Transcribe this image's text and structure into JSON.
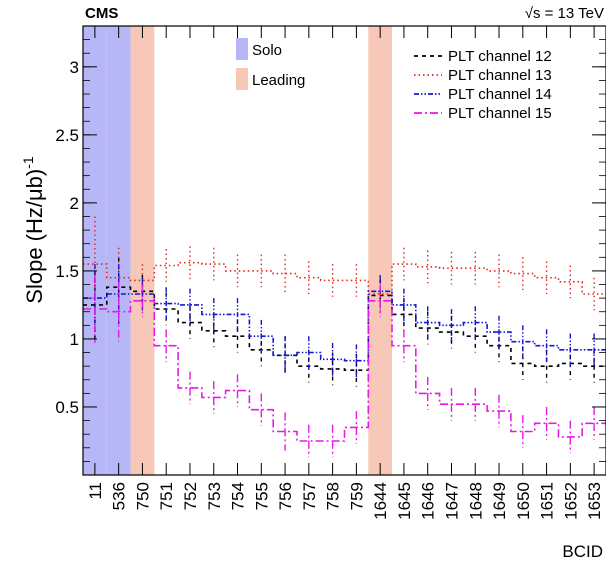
{
  "header": {
    "experiment": "CMS",
    "energy": "√s = 13 TeV"
  },
  "chart_data": {
    "type": "line",
    "ylabel": "Slope (Hz/μb)",
    "ylabel_exponent": "-1",
    "xlabel": "BCID",
    "ylim": [
      0,
      3.3
    ],
    "y_ticks": [
      0.5,
      1,
      1.5,
      2,
      2.5,
      3
    ],
    "y_tick_labels": [
      "0.5",
      "1",
      "1.5",
      "2",
      "2.5",
      "3"
    ],
    "categories": [
      "11",
      "536",
      "750",
      "751",
      "752",
      "753",
      "754",
      "755",
      "756",
      "757",
      "758",
      "759",
      "1644",
      "1645",
      "1646",
      "1647",
      "1648",
      "1649",
      "1650",
      "1651",
      "1652",
      "1653"
    ],
    "grid": false,
    "legend_position": "top-right",
    "shaded_bands": [
      {
        "name": "Solo",
        "color": "#b7b7f8",
        "categories": [
          "11",
          "536"
        ]
      },
      {
        "name": "Leading",
        "color": "#f7c7b8",
        "categories": [
          "750",
          "1644"
        ]
      }
    ],
    "series": [
      {
        "name": "PLT channel 12",
        "color": "#000000",
        "dash": "4,4",
        "values": [
          1.25,
          1.38,
          1.35,
          1.22,
          1.12,
          1.06,
          1.02,
          0.92,
          0.88,
          0.8,
          0.78,
          0.77,
          1.32,
          1.18,
          1.08,
          1.05,
          1.02,
          0.95,
          0.82,
          0.8,
          0.82,
          0.8
        ],
        "errors": [
          0.25,
          0.22,
          0.12,
          0.12,
          0.12,
          0.12,
          0.12,
          0.12,
          0.14,
          0.12,
          0.12,
          0.12,
          0.12,
          0.12,
          0.12,
          0.12,
          0.12,
          0.12,
          0.12,
          0.12,
          0.12,
          0.12
        ]
      },
      {
        "name": "PLT channel 13",
        "color": "#e0281c",
        "dash": "1.5,3",
        "values": [
          1.55,
          1.45,
          1.43,
          1.54,
          1.56,
          1.55,
          1.5,
          1.5,
          1.48,
          1.45,
          1.43,
          1.43,
          1.33,
          1.55,
          1.53,
          1.52,
          1.52,
          1.5,
          1.48,
          1.45,
          1.42,
          1.33
        ],
        "errors": [
          0.35,
          0.22,
          0.12,
          0.12,
          0.12,
          0.12,
          0.12,
          0.12,
          0.14,
          0.12,
          0.12,
          0.12,
          0.12,
          0.12,
          0.12,
          0.12,
          0.12,
          0.12,
          0.12,
          0.12,
          0.12,
          0.12
        ]
      },
      {
        "name": "PLT channel 14",
        "color": "#1515d6",
        "dash": "5,2,1.5,2,1.5,2",
        "values": [
          1.3,
          1.33,
          1.33,
          1.26,
          1.25,
          1.18,
          1.18,
          1.02,
          0.88,
          0.9,
          0.85,
          0.84,
          1.35,
          1.25,
          1.12,
          1.1,
          1.12,
          1.05,
          0.98,
          0.95,
          0.92,
          0.92
        ],
        "errors": [
          0.25,
          0.22,
          0.12,
          0.12,
          0.12,
          0.12,
          0.12,
          0.12,
          0.14,
          0.12,
          0.12,
          0.12,
          0.12,
          0.12,
          0.12,
          0.12,
          0.12,
          0.12,
          0.12,
          0.12,
          0.12,
          0.12
        ]
      },
      {
        "name": "PLT channel 15",
        "color": "#e818e8",
        "dash": "8,3,2,3",
        "values": [
          1.22,
          1.2,
          1.28,
          0.95,
          0.64,
          0.57,
          0.62,
          0.48,
          0.32,
          0.25,
          0.25,
          0.35,
          1.28,
          0.95,
          0.6,
          0.52,
          0.52,
          0.47,
          0.32,
          0.38,
          0.28,
          0.38
        ],
        "errors": [
          0.25,
          0.22,
          0.12,
          0.12,
          0.12,
          0.12,
          0.12,
          0.12,
          0.14,
          0.12,
          0.12,
          0.12,
          0.12,
          0.12,
          0.12,
          0.12,
          0.12,
          0.12,
          0.12,
          0.12,
          0.12,
          0.12
        ]
      }
    ]
  }
}
